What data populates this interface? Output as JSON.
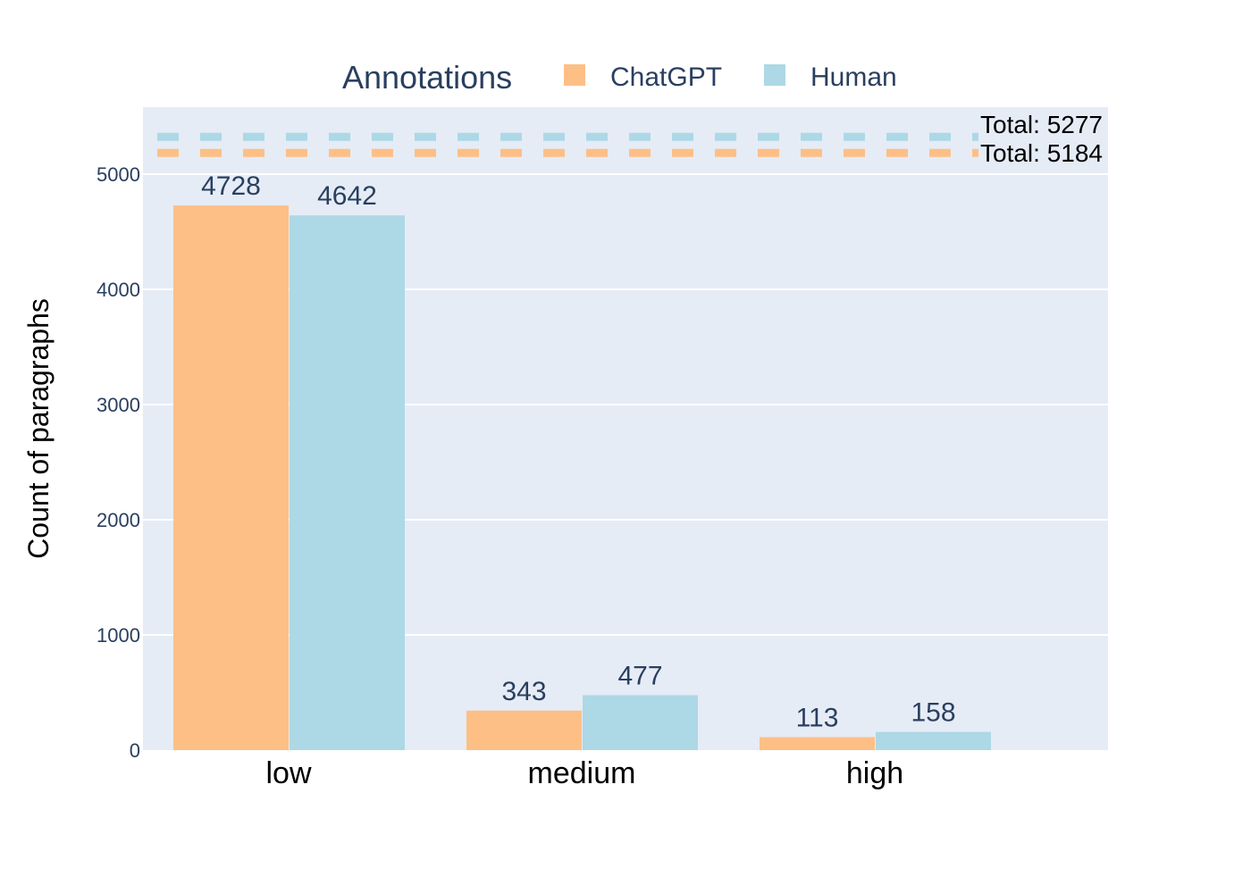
{
  "chart_data": {
    "type": "bar",
    "categories": [
      "low",
      "medium",
      "high"
    ],
    "series": [
      {
        "name": "ChatGPT",
        "values": [
          4728,
          343,
          113
        ],
        "color": "#fdbf85"
      },
      {
        "name": "Human",
        "values": [
          4642,
          477,
          158
        ],
        "color": "#add8e6"
      }
    ],
    "legend": {
      "title": "Annotations",
      "placement": "top"
    },
    "ylabel": "Count of paragraphs",
    "xlabel": "",
    "ylim": [
      0,
      5600
    ],
    "yticks": [
      0,
      1000,
      2000,
      3000,
      4000,
      5000
    ],
    "totals": [
      {
        "label": "Total: 5277",
        "value": 5277,
        "color": "#add8e6"
      },
      {
        "label": "Total: 5184",
        "value": 5184,
        "color": "#fdbf85"
      }
    ],
    "grid": true,
    "plot_background": "#e5ecf6"
  }
}
